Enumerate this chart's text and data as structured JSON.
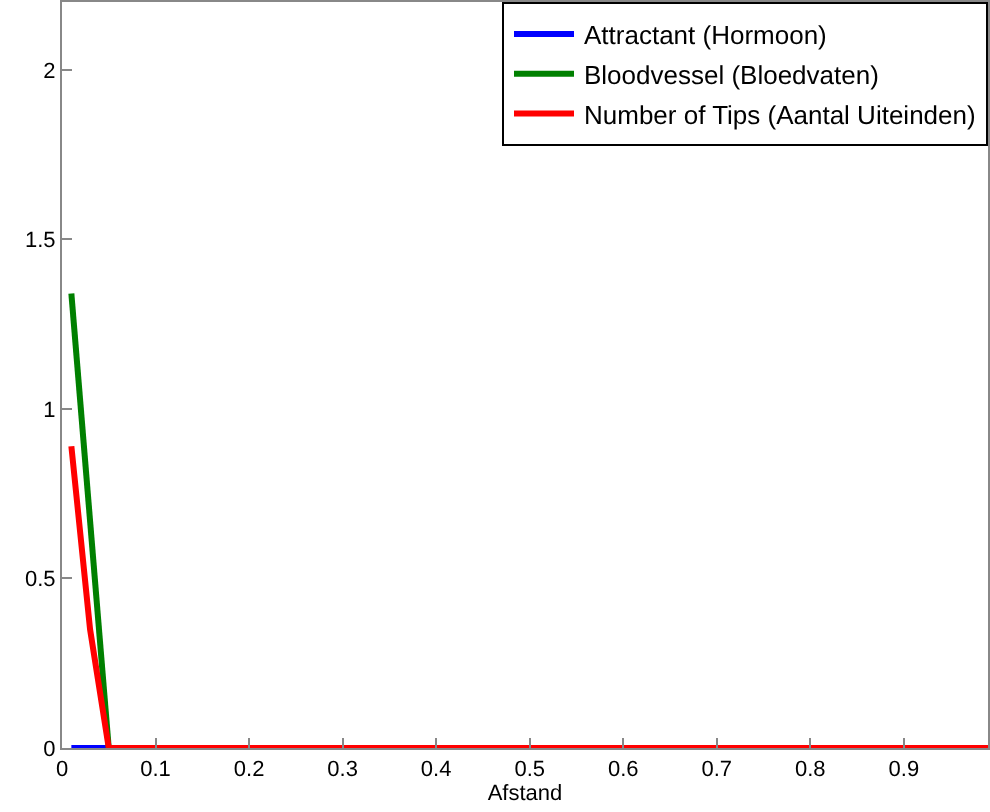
{
  "chart_data": {
    "type": "line",
    "xlabel": "Afstand",
    "series": [
      {
        "name": "Attractant (Hormoon)",
        "color": "#0000ff",
        "x": [
          0.01,
          0.05
        ],
        "values": [
          0,
          0
        ]
      },
      {
        "name": "Bloodvessel (Bloedvaten)",
        "color": "#008000",
        "x": [
          0.01,
          0.05
        ],
        "values": [
          1.34,
          0
        ]
      },
      {
        "name": "Number of Tips (Aantal Uiteinden)",
        "color": "#ff0000",
        "x": [
          0.01,
          0.03,
          0.05,
          0.99
        ],
        "values": [
          0.89,
          0.35,
          0,
          0
        ]
      }
    ],
    "xlim": [
      0,
      0.99
    ],
    "xticks": [
      0,
      0.1,
      0.2,
      0.3,
      0.4,
      0.5,
      0.6,
      0.7,
      0.8,
      0.9
    ],
    "ylim": [
      0,
      2.2
    ],
    "yticks": [
      0,
      0.5,
      1,
      1.5,
      2
    ],
    "grid": false,
    "legend": "top right",
    "marker": "none",
    "line_style": "solid"
  }
}
